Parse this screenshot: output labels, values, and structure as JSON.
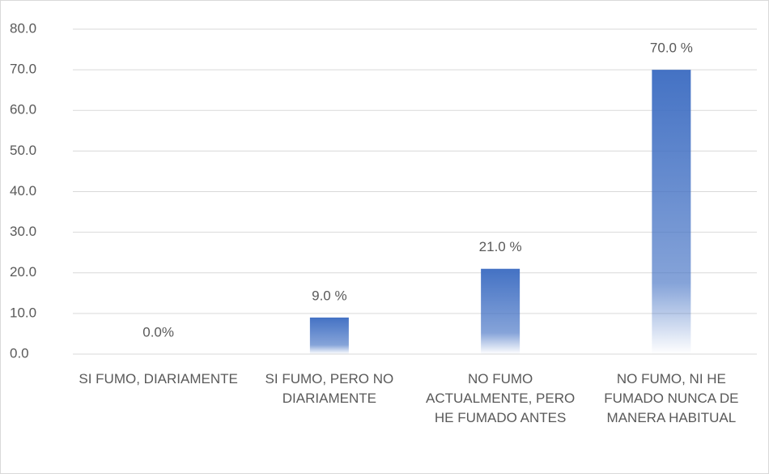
{
  "chart_data": {
    "type": "bar",
    "categories": [
      "SI FUMO, DIARIAMENTE",
      "SI FUMO, PERO NO DIARIAMENTE",
      "NO FUMO ACTUALMENTE, PERO HE FUMADO ANTES",
      "NO FUMO, NI HE FUMADO NUNCA DE MANERA HABITUAL"
    ],
    "values": [
      0,
      9,
      21,
      70
    ],
    "value_labels": [
      "0.0%",
      "9.0 %",
      "21.0 %",
      "70.0 %"
    ],
    "color": "#4472c4",
    "ylim": [
      0,
      80
    ],
    "yticks": [
      {
        "value": 0,
        "label": "0.0"
      },
      {
        "value": 10,
        "label": "10.0"
      },
      {
        "value": 20,
        "label": "20.0"
      },
      {
        "value": 30,
        "label": "30.0"
      },
      {
        "value": 40,
        "label": "40.0"
      },
      {
        "value": 50,
        "label": "50.0"
      },
      {
        "value": 60,
        "label": "60.0"
      },
      {
        "value": 70,
        "label": "70.0"
      },
      {
        "value": 80,
        "label": "80.0"
      }
    ],
    "grid": true
  }
}
